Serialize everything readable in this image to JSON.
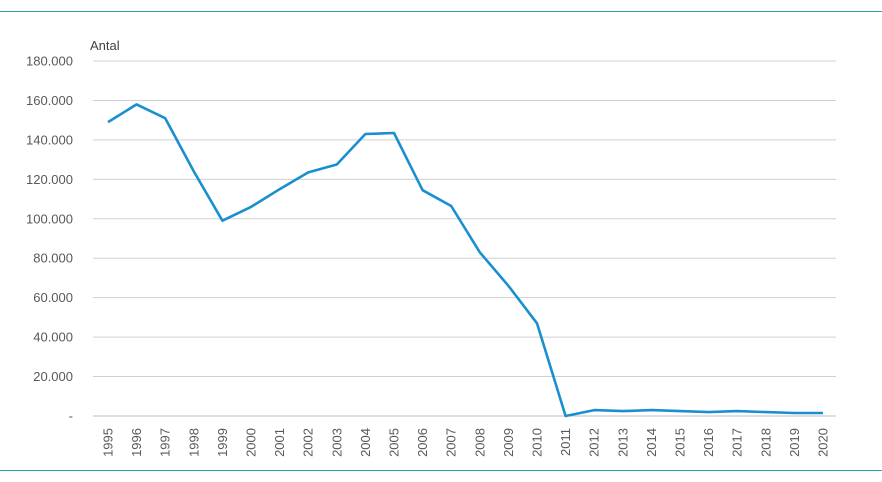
{
  "chart_data": {
    "type": "line",
    "title": "",
    "xlabel": "",
    "ylabel": "Antal",
    "ylim": [
      0,
      180000
    ],
    "yticks": [
      "-",
      "20.000",
      "40.000",
      "60.000",
      "80.000",
      "100.000",
      "120.000",
      "140.000",
      "160.000",
      "180.000"
    ],
    "grid": true,
    "legend": "none",
    "x": [
      "1995",
      "1996",
      "1997",
      "1998",
      "1999",
      "2000",
      "2001",
      "2002",
      "2003",
      "2004",
      "2005",
      "2006",
      "2007",
      "2008",
      "2009",
      "2010",
      "2011",
      "2012",
      "2013",
      "2014",
      "2015",
      "2016",
      "2017",
      "2018",
      "2019",
      "2020"
    ],
    "series": [
      {
        "color": "#1a8fd0",
        "values": [
          149000,
          158000,
          151000,
          124000,
          99000,
          106000,
          115000,
          123500,
          127500,
          143000,
          143500,
          114500,
          106500,
          83000,
          66000,
          47000,
          0,
          3000,
          2500,
          3000,
          2500,
          2000,
          2500,
          2000,
          1500,
          1500
        ]
      }
    ]
  }
}
